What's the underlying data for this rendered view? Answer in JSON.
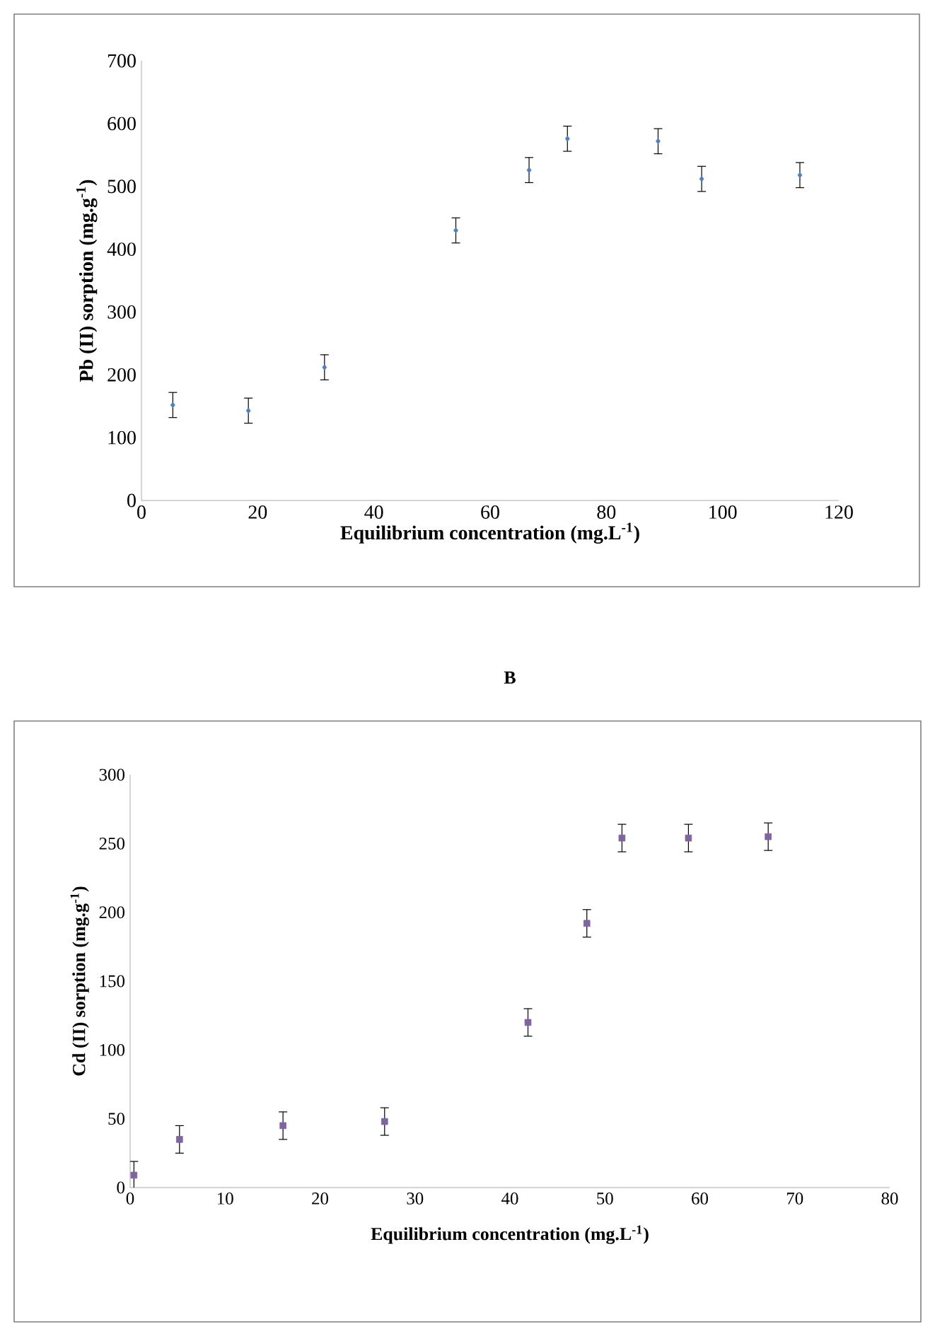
{
  "chart_data": [
    {
      "type": "scatter",
      "xlabel": "Equilibrium concentration (mg.L$^{-1}$)",
      "ylabel": "Pb (II) sorption (mg.g$^{-1}$)",
      "xlim": [
        0,
        120
      ],
      "xticks": [
        0,
        20,
        40,
        60,
        80,
        100,
        120
      ],
      "ylim": [
        0,
        700
      ],
      "yticks": [
        0,
        100,
        200,
        300,
        400,
        500,
        600,
        700
      ],
      "marker": "diamond",
      "grid": false,
      "legend": false,
      "series": [
        {
          "color": "#4f81bd",
          "x": [
            5.4,
            18.4,
            31.5,
            54.1,
            66.7,
            73.3,
            88.9,
            96.4,
            113.3
          ],
          "values": [
            152,
            143,
            212,
            430,
            526,
            576,
            572,
            512,
            518
          ],
          "errors": [
            20,
            20,
            20,
            20,
            20,
            20,
            20,
            20,
            20
          ]
        }
      ]
    },
    {
      "type": "scatter",
      "title": "B",
      "xlabel": "Equilibrium concentration (mg.L$^{-1}$)",
      "ylabel": "Cd (II) sorption (mg.g$^{-1}$)",
      "xlim": [
        0,
        80
      ],
      "xticks": [
        0,
        10,
        20,
        30,
        40,
        50,
        60,
        70,
        80
      ],
      "ylim": [
        0,
        300
      ],
      "yticks": [
        0,
        50,
        100,
        150,
        200,
        250,
        300
      ],
      "marker": "square",
      "grid": false,
      "legend": false,
      "series": [
        {
          "color": "#8064a2",
          "x": [
            0.4,
            5.2,
            16.1,
            26.8,
            41.9,
            48.1,
            51.8,
            58.8,
            67.2
          ],
          "values": [
            9,
            35,
            45,
            48,
            120,
            192,
            254,
            254,
            255
          ],
          "errors": [
            10,
            10,
            10,
            10,
            10,
            10,
            10,
            10,
            10
          ]
        }
      ]
    }
  ]
}
